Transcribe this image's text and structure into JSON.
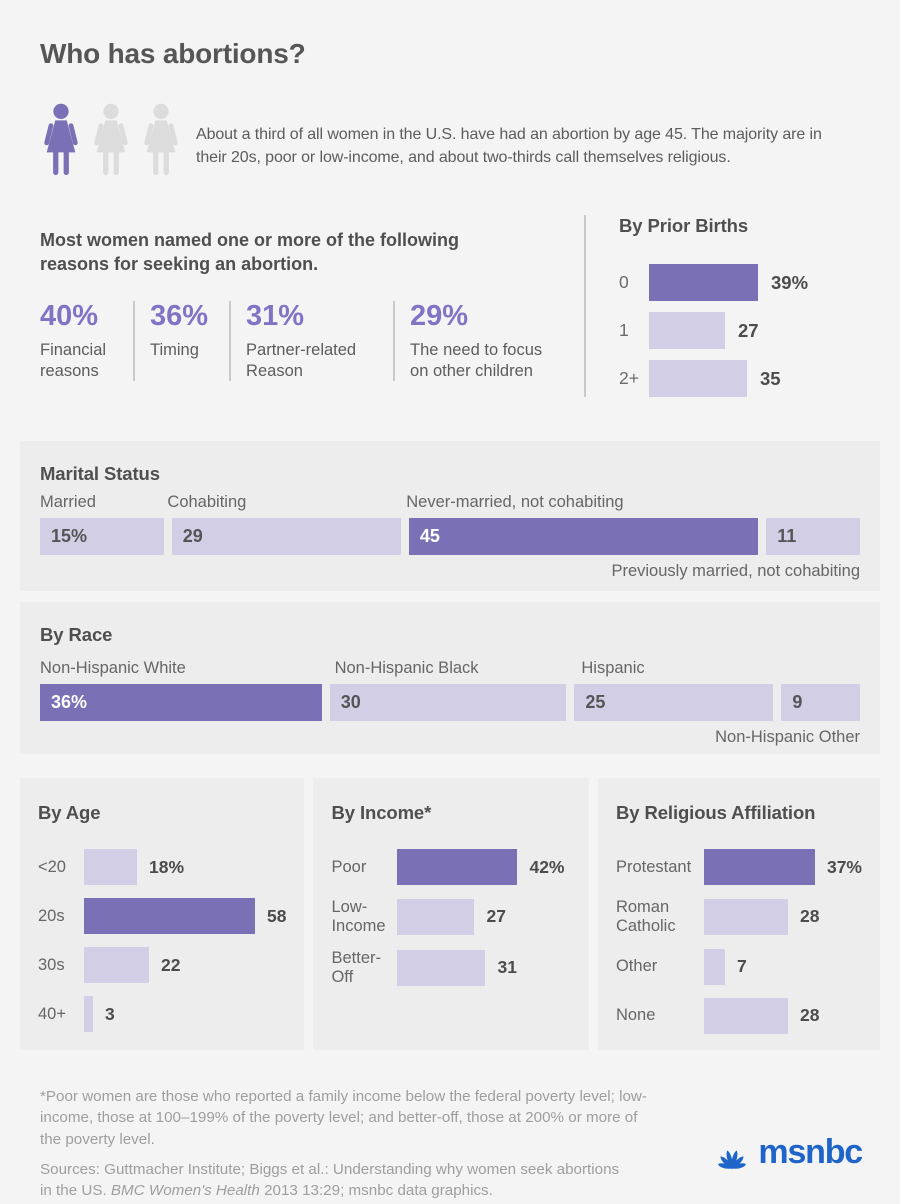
{
  "header": {
    "title": "Who has abortions?",
    "intro": "About a third of all women in the U.S. have had an abortion by age 45. The majority are in their 20s, poor or low-income, and about two-thirds call themselves religious."
  },
  "reasons": {
    "heading": "Most women named one or more of the following reasons for seeking an abortion.",
    "items": [
      {
        "value": "40%",
        "label": "Financial reasons"
      },
      {
        "value": "36%",
        "label": "Timing"
      },
      {
        "value": "31%",
        "label": "Partner-related Reason"
      },
      {
        "value": "29%",
        "label": "The need to focus on other children"
      }
    ]
  },
  "chart_data": [
    {
      "id": "prior_births",
      "type": "bar",
      "orientation": "horizontal",
      "title": "By Prior Births",
      "categories": [
        "0",
        "1",
        "2+"
      ],
      "values": [
        39,
        27,
        35
      ],
      "value_labels": [
        "39%",
        "27",
        "35"
      ],
      "highlight_index": 0
    },
    {
      "id": "marital",
      "type": "bar",
      "subtype": "proportional-100",
      "title": "Marital Status",
      "categories": [
        "Married",
        "Cohabiting",
        "Never-married, not cohabiting",
        "Previously married, not cohabiting"
      ],
      "values": [
        15,
        29,
        45,
        11
      ],
      "value_labels": [
        "15%",
        "29",
        "45",
        "11"
      ],
      "label_positions": [
        "above",
        "above",
        "above",
        "below"
      ],
      "highlight_index": 2
    },
    {
      "id": "race",
      "type": "bar",
      "subtype": "proportional-100",
      "title": "By Race",
      "categories": [
        "Non-Hispanic White",
        "Non-Hispanic Black",
        "Hispanic",
        "Non-Hispanic Other"
      ],
      "values": [
        36,
        30,
        25,
        9
      ],
      "value_labels": [
        "36%",
        "30",
        "25",
        "9"
      ],
      "label_positions": [
        "above",
        "above",
        "above",
        "below"
      ],
      "highlight_index": 0
    },
    {
      "id": "age",
      "type": "bar",
      "orientation": "horizontal",
      "title": "By Age",
      "categories": [
        "<20",
        "20s",
        "30s",
        "40+"
      ],
      "values": [
        18,
        58,
        22,
        3
      ],
      "value_labels": [
        "18%",
        "58",
        "22",
        "3"
      ],
      "highlight_index": 1
    },
    {
      "id": "income",
      "type": "bar",
      "orientation": "horizontal",
      "title": "By Income*",
      "categories": [
        "Poor",
        "Low-\nIncome",
        "Better-\nOff"
      ],
      "values": [
        42,
        27,
        31
      ],
      "value_labels": [
        "42%",
        "27",
        "31"
      ],
      "highlight_index": 0
    },
    {
      "id": "religion",
      "type": "bar",
      "orientation": "horizontal",
      "title": "By Religious Affiliation",
      "categories": [
        "Protestant",
        "Roman\nCatholic",
        "Other",
        "None"
      ],
      "values": [
        37,
        28,
        7,
        28
      ],
      "value_labels": [
        "37%",
        "28",
        "7",
        "28"
      ],
      "highlight_index": 0
    }
  ],
  "footnote": "*Poor women are those who reported a family income below the federal poverty level; low-income, those at 100–199% of the poverty level; and better-off, those at 200% or more of the poverty level.",
  "sources": {
    "prefix": "Sources: Guttmacher Institute; Biggs et al.: Understanding why women seek abortions in the US. ",
    "italic": "BMC Women's Health",
    "suffix": " 2013 13:29; msnbc data graphics."
  },
  "logo": {
    "text": "msnbc"
  },
  "colors": {
    "accent_purple": "#7a70b5",
    "light_purple": "#d2cee6",
    "msnbc_blue": "#1e64c9"
  }
}
